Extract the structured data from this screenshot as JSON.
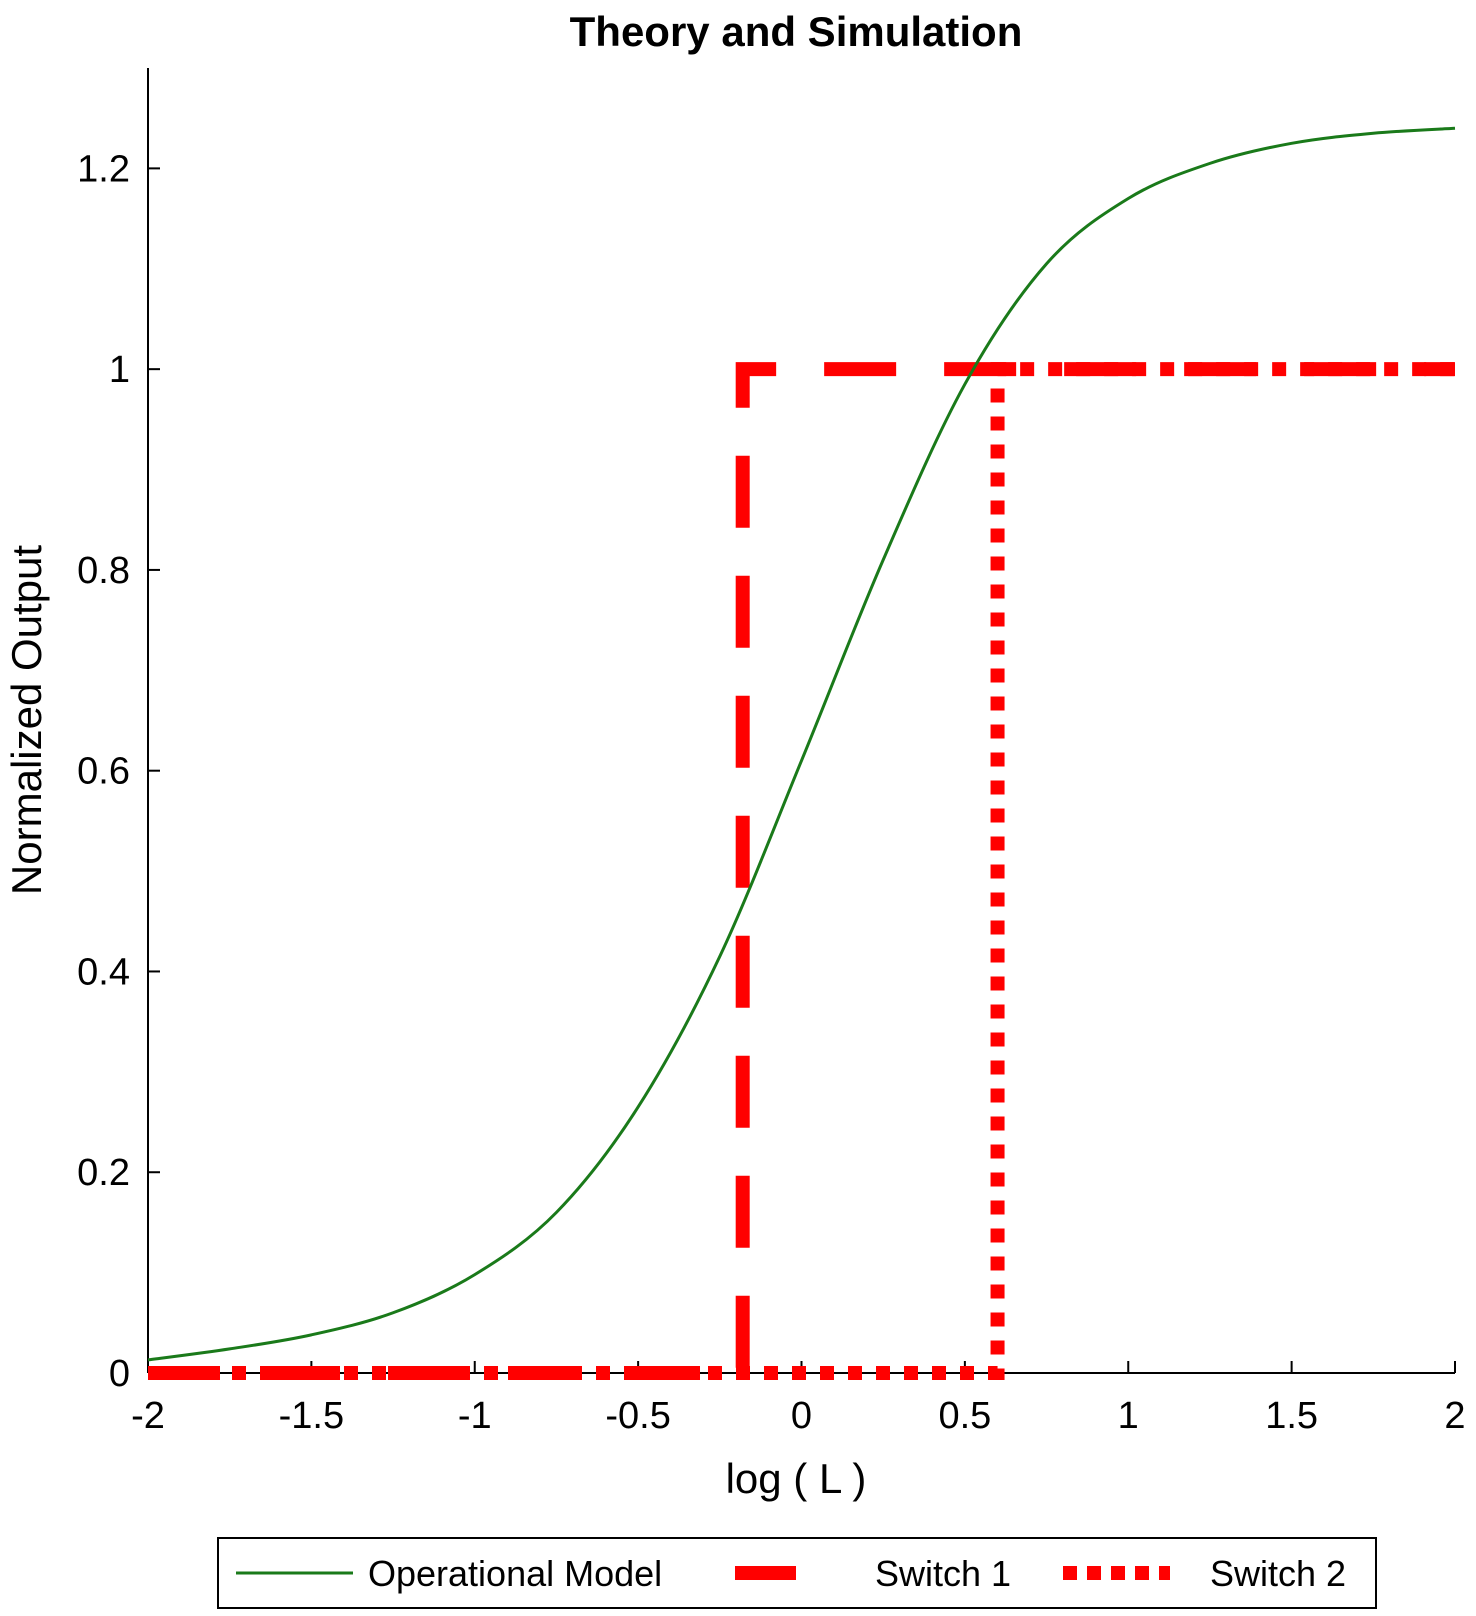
{
  "chart_data": {
    "type": "line",
    "title": "Theory and Simulation",
    "xlabel": "log ( L )",
    "ylabel": "Normalized Output",
    "xlim": [
      -2,
      2
    ],
    "ylim": [
      0,
      1.3
    ],
    "x_ticks": [
      -2,
      -1.5,
      -1,
      -0.5,
      0,
      0.5,
      1,
      1.5,
      2
    ],
    "x_tick_labels": [
      "-2",
      "-1.5",
      "-1",
      "-0.5",
      "0",
      "0.5",
      "1",
      "1.5",
      "2"
    ],
    "y_ticks": [
      0,
      0.2,
      0.4,
      0.6,
      0.8,
      1,
      1.2
    ],
    "y_tick_labels": [
      "0",
      "0.2",
      "0.4",
      "0.6",
      "0.8",
      "1",
      "1.2"
    ],
    "grid": false,
    "legend_position": "bottom",
    "series": [
      {
        "name": "Operational Model",
        "style": "solid",
        "color": "#1a7a1a",
        "x": [
          -2,
          -1.75,
          -1.5,
          -1.25,
          -1,
          -0.75,
          -0.5,
          -0.25,
          0,
          0.25,
          0.5,
          0.75,
          1,
          1.25,
          1.5,
          1.75,
          2
        ],
        "y": [
          0.013,
          0.024,
          0.038,
          0.06,
          0.098,
          0.16,
          0.265,
          0.415,
          0.61,
          0.81,
          0.985,
          1.105,
          1.17,
          1.205,
          1.225,
          1.235,
          1.24
        ]
      },
      {
        "name": "Switch 1",
        "style": "dashed",
        "color": "#ff0000",
        "x": [
          -2,
          -0.18,
          -0.18,
          2
        ],
        "y": [
          0,
          0,
          1,
          1
        ]
      },
      {
        "name": "Switch 2",
        "style": "dotted",
        "color": "#ff0000",
        "x": [
          -2,
          0.6,
          0.6,
          2
        ],
        "y": [
          0,
          0,
          1,
          1
        ]
      }
    ]
  }
}
